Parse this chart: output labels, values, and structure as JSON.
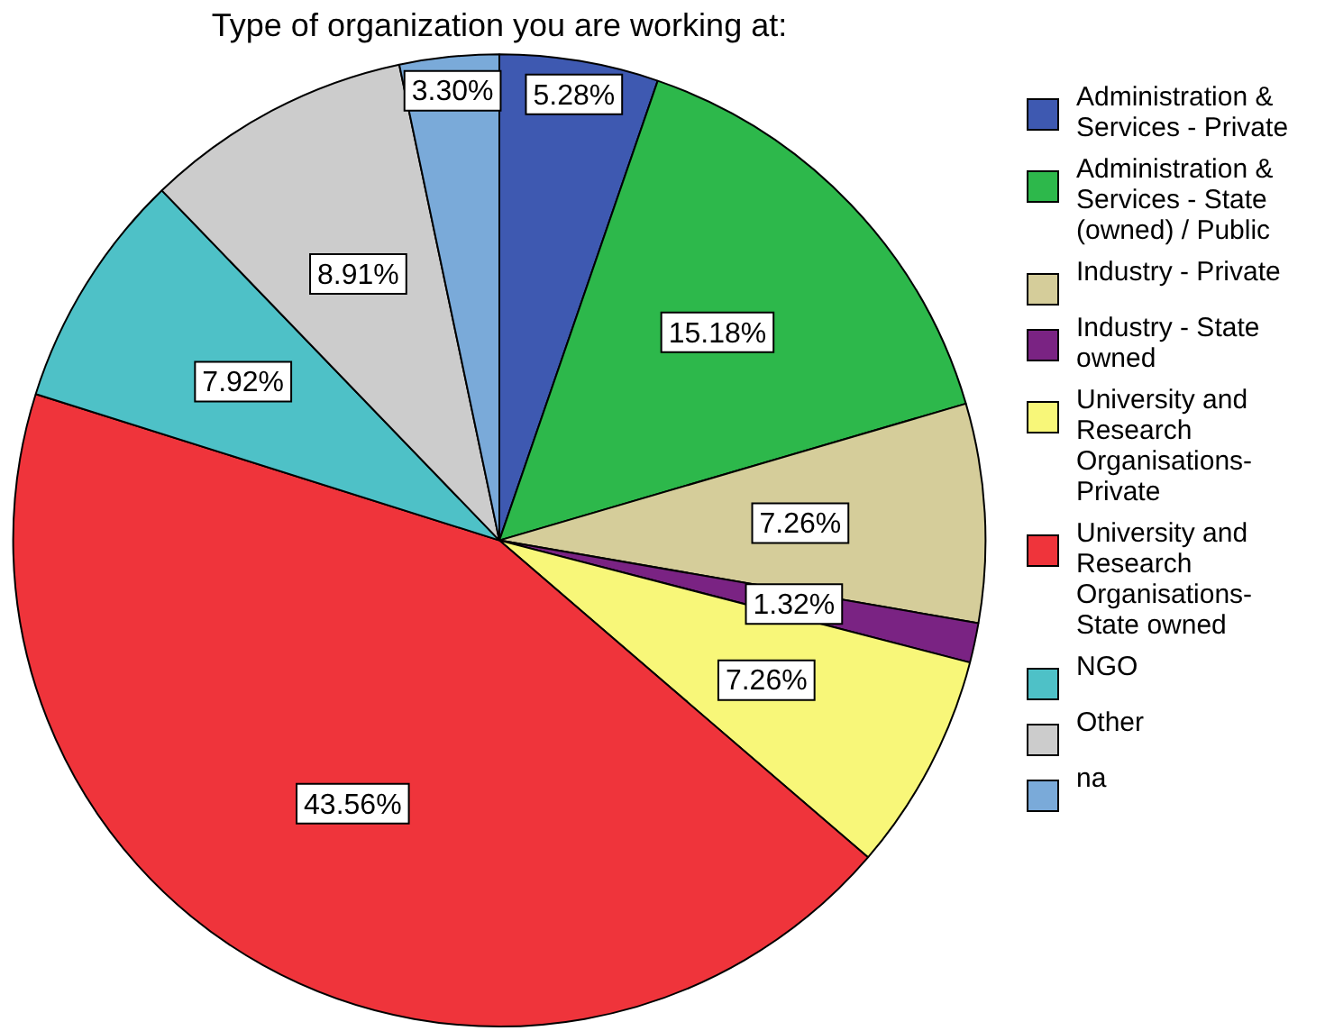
{
  "chart_data": {
    "type": "pie",
    "title": "Type of organization you are working at:",
    "categories": [
      "Administration & Services - Private",
      "Administration & Services - State (owned) / Public",
      "Industry - Private",
      "Industry - State owned",
      "University and Research Organisations- Private",
      "University and Research Organisations- State owned",
      "NGO",
      "Other",
      "na"
    ],
    "values": [
      5.28,
      15.18,
      7.26,
      1.32,
      7.26,
      43.56,
      7.92,
      8.91,
      3.3
    ],
    "colors": [
      "#3e59b1",
      "#2db84b",
      "#d5cd9a",
      "#7a2383",
      "#f8f779",
      "#ef343b",
      "#4ec1c7",
      "#cccccc",
      "#7aaad9"
    ],
    "value_labels": [
      "5.28%",
      "15.18%",
      "7.26%",
      "1.32%",
      "7.26%",
      "43.56%",
      "7.92%",
      "8.91%",
      "3.30%"
    ],
    "legend": "right"
  }
}
